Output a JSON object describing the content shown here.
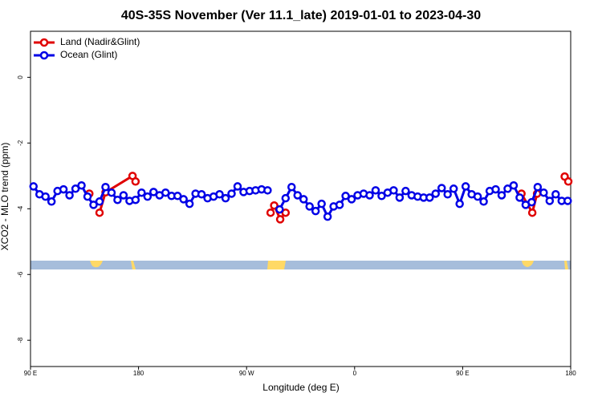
{
  "chart_data": {
    "type": "line",
    "title": "40S-35S November (Ver 11.1_late)   2019-01-01 to 2023-04-30",
    "xlabel": "Longitude (deg E)",
    "ylabel": "XCO2 - MLO trend (ppm)",
    "xlim": [
      90,
      540
    ],
    "ylim": [
      -8.8,
      1.4
    ],
    "xticks": [
      {
        "value": 90,
        "label": "90 E"
      },
      180,
      {
        "value": 270,
        "label": "90 W"
      },
      {
        "value": 360,
        "label": "0"
      },
      {
        "value": 450,
        "label": "90 E"
      },
      {
        "value": 540,
        "label": "180"
      }
    ],
    "yticks": [
      0,
      -2,
      -4,
      -6,
      -8
    ],
    "grid": false,
    "legend": "upper left",
    "series": [
      {
        "name": "Land (Nadir&Glint)",
        "color": "#e00000",
        "x": [
          139,
          143,
          147.5,
          152.5,
          175,
          177.5,
          230,
          290,
          293,
          298,
          302.5,
          400,
          499,
          508,
          512,
          520,
          535,
          538
        ],
        "values": [
          -3.54,
          null,
          -4.12,
          -3.5,
          -3.0,
          -3.17,
          null,
          -4.12,
          -3.9,
          -4.32,
          -4.12,
          null,
          -3.54,
          -4.12,
          -3.54,
          null,
          -3.02,
          -3.17
        ]
      },
      {
        "name": "Ocean (Glint)",
        "color": "#0000e6",
        "x": [
          92.5,
          97.5,
          102.5,
          107.5,
          112.5,
          117.5,
          122.5,
          127.5,
          132.5,
          137.5,
          142.5,
          147.5,
          152.5,
          157.5,
          162.5,
          167.5,
          172.5,
          177.5,
          182.5,
          187.5,
          192.5,
          197.5,
          202.5,
          207.5,
          212.5,
          217.5,
          222.5,
          227.5,
          232.5,
          237.5,
          242.5,
          247.5,
          252.5,
          257.5,
          262.5,
          267.5,
          272.5,
          277.5,
          282.5,
          287.5,
          292.5,
          297.5,
          302.5,
          307.5,
          312.5,
          317.5,
          322.5,
          327.5,
          332.5,
          337.5,
          342.5,
          347.5,
          352.5,
          357.5,
          362.5,
          367.5,
          372.5,
          377.5,
          382.5,
          387.5,
          392.5,
          397.5,
          402.5,
          407.5,
          412.5,
          417.5,
          422.5,
          427.5,
          432.5,
          437.5,
          442.5,
          447.5,
          452.5,
          457.5,
          462.5,
          467.5,
          472.5,
          477.5,
          482.5,
          487.5,
          492.5,
          497.5,
          502.5,
          507.5,
          512.5,
          517.5,
          522.5,
          527.5,
          532.5,
          537.5
        ],
        "values": [
          -3.32,
          -3.56,
          -3.63,
          -3.78,
          -3.46,
          -3.41,
          -3.59,
          -3.39,
          -3.29,
          -3.63,
          -3.88,
          -3.78,
          -3.34,
          -3.51,
          -3.73,
          -3.59,
          -3.76,
          -3.73,
          -3.51,
          -3.63,
          -3.49,
          -3.59,
          -3.51,
          -3.61,
          -3.61,
          -3.71,
          -3.85,
          -3.54,
          -3.56,
          -3.68,
          -3.63,
          -3.56,
          -3.68,
          -3.54,
          -3.32,
          -3.49,
          -3.46,
          -3.44,
          -3.41,
          -3.44,
          null,
          -4.02,
          -3.68,
          -3.34,
          -3.59,
          -3.71,
          -3.93,
          -4.07,
          -3.85,
          -4.24,
          -3.93,
          -3.88,
          -3.61,
          -3.71,
          -3.59,
          -3.54,
          -3.59,
          -3.44,
          -3.61,
          -3.51,
          -3.44,
          -3.66,
          -3.46,
          -3.59,
          -3.63,
          -3.66,
          -3.66,
          -3.54,
          -3.37,
          -3.56,
          -3.39,
          -3.85,
          -3.32,
          -3.56,
          -3.63,
          -3.78,
          -3.46,
          -3.41,
          -3.59,
          -3.39,
          -3.29,
          -3.66,
          -3.88,
          -3.8,
          -3.34,
          -3.51,
          -3.76,
          -3.56,
          -3.76,
          -3.76
        ]
      }
    ]
  }
}
